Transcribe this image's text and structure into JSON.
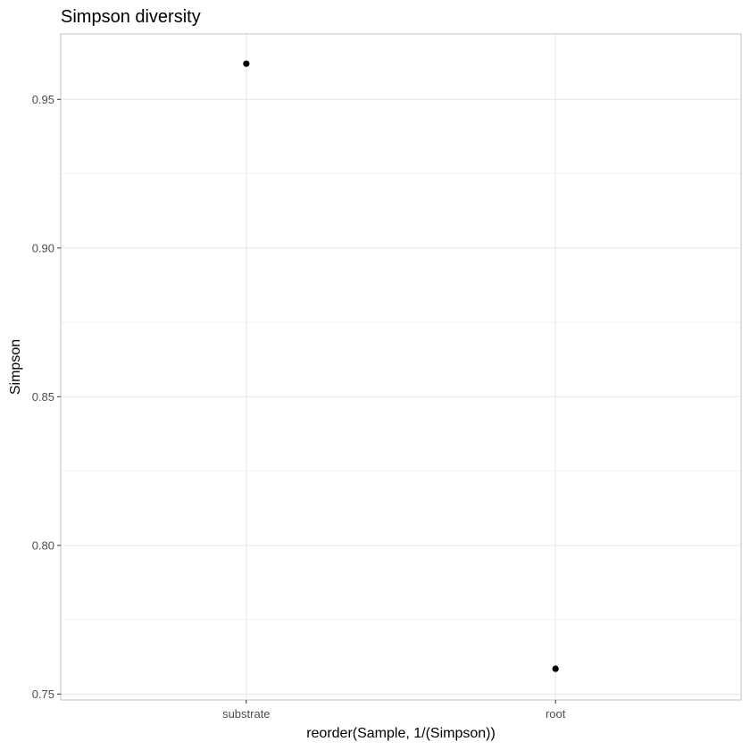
{
  "chart_data": {
    "type": "scatter",
    "title": "Simpson diversity",
    "xlabel": "reorder(Sample, 1/(Simpson))",
    "ylabel": "Simpson",
    "categories": [
      "substrate",
      "root"
    ],
    "values": [
      0.962,
      0.7585
    ],
    "yticks": [
      0.75,
      0.8,
      0.85,
      0.9,
      0.95
    ],
    "ytick_labels": [
      "0.75",
      "0.80",
      "0.85",
      "0.90",
      "0.95"
    ],
    "ylim": [
      0.748,
      0.972
    ],
    "grid": true,
    "colors": {
      "point": "#000000",
      "grid_major": "#e6e6e6",
      "grid_minor": "#f2f2f2",
      "panel_border": "#bfbfbf"
    }
  }
}
